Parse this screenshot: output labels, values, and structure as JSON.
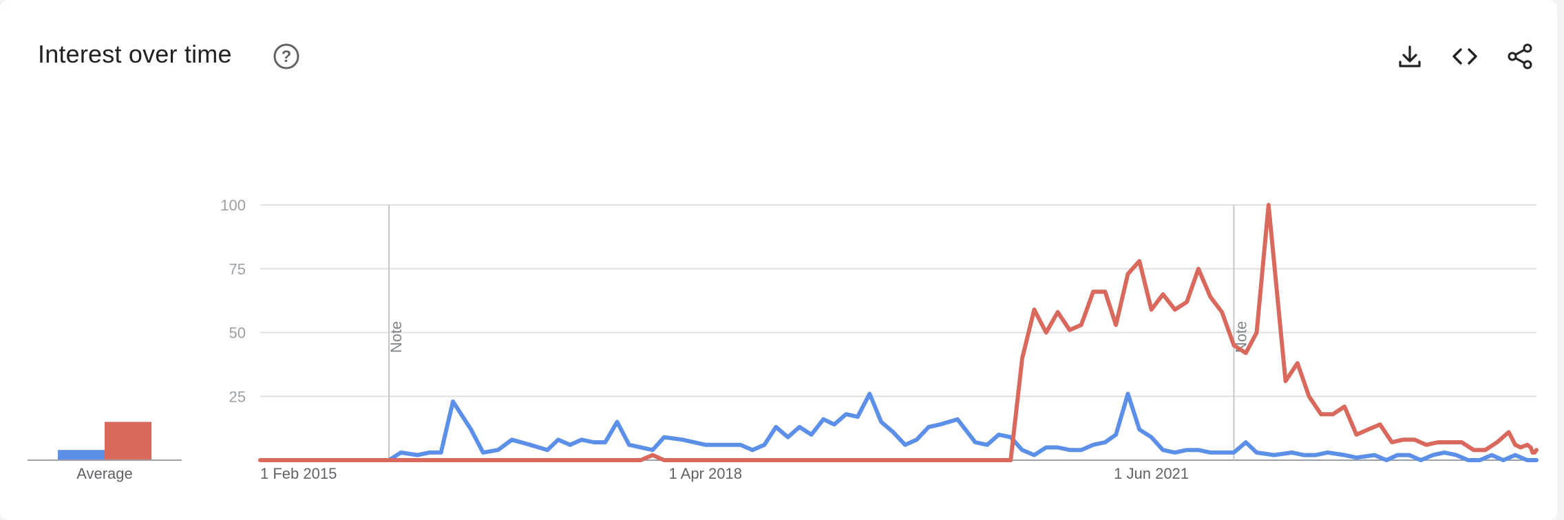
{
  "header": {
    "title": "Interest over time"
  },
  "icons": {
    "help": "help-circle-icon",
    "download": "download-icon",
    "embed": "code-icon",
    "share": "share-icon"
  },
  "colors": {
    "series1": "#5b8fe8",
    "series2": "#d9685d",
    "grid": "#e0e0e0"
  },
  "average": {
    "label": "Average",
    "values": [
      4,
      15
    ]
  },
  "chart_data": {
    "type": "line",
    "ylim": [
      0,
      100
    ],
    "yticks": [
      25,
      50,
      75,
      100
    ],
    "xlim": [
      "2015-02-01",
      "2024-02-25"
    ],
    "xtick_labels": [
      {
        "date": "2015-02-01",
        "label": "1 Feb 2015"
      },
      {
        "date": "2018-04-01",
        "label": "1 Apr 2018"
      },
      {
        "date": "2021-06-01",
        "label": "1 Jun 2021"
      }
    ],
    "notes": [
      {
        "date": "2016-01-01",
        "label": "Note"
      },
      {
        "date": "2022-01-01",
        "label": "Note"
      }
    ],
    "grid": true,
    "series": [
      {
        "color": "#5b8fe8",
        "points": [
          [
            "2016-01-01",
            0
          ],
          [
            "2016-02-01",
            3
          ],
          [
            "2016-03-15",
            2
          ],
          [
            "2016-04-15",
            3
          ],
          [
            "2016-05-15",
            3
          ],
          [
            "2016-06-15",
            23
          ],
          [
            "2016-08-01",
            12
          ],
          [
            "2016-09-01",
            3
          ],
          [
            "2016-10-10",
            4
          ],
          [
            "2016-11-15",
            8
          ],
          [
            "2017-01-01",
            6
          ],
          [
            "2017-02-15",
            4
          ],
          [
            "2017-03-15",
            8
          ],
          [
            "2017-04-15",
            6
          ],
          [
            "2017-05-15",
            8
          ],
          [
            "2017-06-15",
            7
          ],
          [
            "2017-07-15",
            7
          ],
          [
            "2017-08-15",
            15
          ],
          [
            "2017-09-15",
            6
          ],
          [
            "2017-11-15",
            4
          ],
          [
            "2017-12-15",
            9
          ],
          [
            "2018-02-01",
            8
          ],
          [
            "2018-04-01",
            6
          ],
          [
            "2018-06-01",
            6
          ],
          [
            "2018-07-01",
            6
          ],
          [
            "2018-08-01",
            4
          ],
          [
            "2018-09-01",
            6
          ],
          [
            "2018-10-01",
            13
          ],
          [
            "2018-11-01",
            9
          ],
          [
            "2018-12-01",
            13
          ],
          [
            "2019-01-01",
            10
          ],
          [
            "2019-02-01",
            16
          ],
          [
            "2019-03-01",
            14
          ],
          [
            "2019-04-01",
            18
          ],
          [
            "2019-05-01",
            17
          ],
          [
            "2019-06-01",
            26
          ],
          [
            "2019-07-01",
            15
          ],
          [
            "2019-08-01",
            11
          ],
          [
            "2019-09-01",
            6
          ],
          [
            "2019-10-01",
            8
          ],
          [
            "2019-11-01",
            13
          ],
          [
            "2019-12-01",
            14
          ],
          [
            "2020-01-15",
            16
          ],
          [
            "2020-03-01",
            7
          ],
          [
            "2020-04-01",
            6
          ],
          [
            "2020-05-01",
            10
          ],
          [
            "2020-06-01",
            9
          ],
          [
            "2020-07-01",
            4
          ],
          [
            "2020-08-01",
            2
          ],
          [
            "2020-09-01",
            5
          ],
          [
            "2020-10-01",
            5
          ],
          [
            "2020-11-01",
            4
          ],
          [
            "2020-12-01",
            4
          ],
          [
            "2021-01-01",
            6
          ],
          [
            "2021-02-01",
            7
          ],
          [
            "2021-03-01",
            10
          ],
          [
            "2021-04-01",
            26
          ],
          [
            "2021-05-01",
            12
          ],
          [
            "2021-06-01",
            9
          ],
          [
            "2021-07-01",
            4
          ],
          [
            "2021-08-01",
            3
          ],
          [
            "2021-09-01",
            4
          ],
          [
            "2021-10-01",
            4
          ],
          [
            "2021-11-01",
            3
          ],
          [
            "2021-12-01",
            3
          ],
          [
            "2022-01-01",
            3
          ],
          [
            "2022-02-01",
            7
          ],
          [
            "2022-03-01",
            3
          ],
          [
            "2022-04-15",
            2
          ],
          [
            "2022-06-01",
            3
          ],
          [
            "2022-07-01",
            2
          ],
          [
            "2022-08-01",
            2
          ],
          [
            "2022-09-01",
            3
          ],
          [
            "2022-10-15",
            2
          ],
          [
            "2022-11-15",
            1
          ],
          [
            "2023-01-01",
            2
          ],
          [
            "2023-02-01",
            0
          ],
          [
            "2023-03-01",
            2
          ],
          [
            "2023-04-01",
            2
          ],
          [
            "2023-05-01",
            0
          ],
          [
            "2023-06-01",
            2
          ],
          [
            "2023-07-01",
            3
          ],
          [
            "2023-08-01",
            2
          ],
          [
            "2023-09-01",
            0
          ],
          [
            "2023-10-01",
            0
          ],
          [
            "2023-11-01",
            2
          ],
          [
            "2023-12-01",
            0
          ],
          [
            "2024-01-01",
            2
          ],
          [
            "2024-02-01",
            0
          ],
          [
            "2024-02-25",
            0
          ]
        ]
      },
      {
        "color": "#d9685d",
        "points": [
          [
            "2015-02-01",
            0
          ],
          [
            "2017-10-15",
            0
          ],
          [
            "2017-11-15",
            2
          ],
          [
            "2017-12-15",
            0
          ],
          [
            "2020-06-01",
            0
          ],
          [
            "2020-07-01",
            40
          ],
          [
            "2020-08-01",
            59
          ],
          [
            "2020-09-01",
            50
          ],
          [
            "2020-10-01",
            58
          ],
          [
            "2020-11-01",
            51
          ],
          [
            "2020-12-01",
            53
          ],
          [
            "2021-01-01",
            66
          ],
          [
            "2021-02-01",
            66
          ],
          [
            "2021-03-01",
            53
          ],
          [
            "2021-04-01",
            73
          ],
          [
            "2021-05-01",
            78
          ],
          [
            "2021-06-01",
            59
          ],
          [
            "2021-07-01",
            65
          ],
          [
            "2021-08-01",
            59
          ],
          [
            "2021-09-01",
            62
          ],
          [
            "2021-10-01",
            75
          ],
          [
            "2021-11-01",
            64
          ],
          [
            "2021-12-01",
            58
          ],
          [
            "2022-01-01",
            45
          ],
          [
            "2022-02-01",
            42
          ],
          [
            "2022-03-01",
            50
          ],
          [
            "2022-04-01",
            100
          ],
          [
            "2022-05-15",
            31
          ],
          [
            "2022-06-15",
            38
          ],
          [
            "2022-07-15",
            25
          ],
          [
            "2022-08-15",
            18
          ],
          [
            "2022-09-15",
            18
          ],
          [
            "2022-10-15",
            21
          ],
          [
            "2022-11-15",
            10
          ],
          [
            "2022-12-15",
            12
          ],
          [
            "2023-01-15",
            14
          ],
          [
            "2023-02-15",
            7
          ],
          [
            "2023-03-15",
            8
          ],
          [
            "2023-04-15",
            8
          ],
          [
            "2023-05-15",
            6
          ],
          [
            "2023-06-15",
            7
          ],
          [
            "2023-07-15",
            7
          ],
          [
            "2023-08-15",
            7
          ],
          [
            "2023-09-15",
            4
          ],
          [
            "2023-10-15",
            4
          ],
          [
            "2023-11-15",
            7
          ],
          [
            "2023-12-15",
            11
          ],
          [
            "2024-01-01",
            6
          ],
          [
            "2024-01-15",
            5
          ],
          [
            "2024-02-01",
            6
          ],
          [
            "2024-02-10",
            5
          ],
          [
            "2024-02-15",
            3
          ],
          [
            "2024-02-20",
            3
          ],
          [
            "2024-02-25",
            4
          ]
        ]
      }
    ]
  }
}
